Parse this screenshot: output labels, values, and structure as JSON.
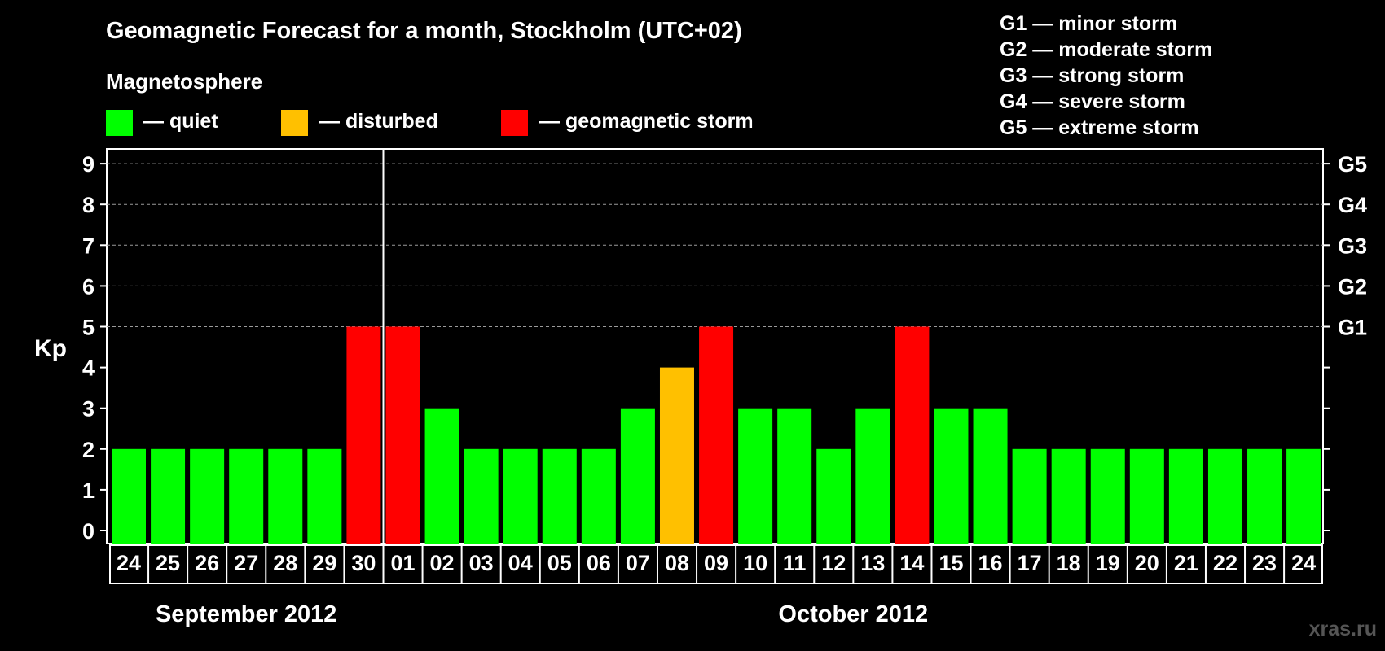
{
  "title": "Geomagnetic Forecast for a month, Stockholm (UTC+02)",
  "legend": {
    "heading": "Magnetosphere",
    "items": [
      {
        "label": "— quiet",
        "color": "#00ff00"
      },
      {
        "label": "— disturbed",
        "color": "#ffc000"
      },
      {
        "label": "— geomagnetic storm",
        "color": "#ff0000"
      }
    ]
  },
  "storm_scale": [
    "G1 — minor storm",
    "G2 — moderate storm",
    "G3 — strong storm",
    "G4 — severe storm",
    "G5 — extreme storm"
  ],
  "watermark": "xras.ru",
  "chart_data": {
    "type": "bar",
    "ylabel": "Kp",
    "ylim": [
      0,
      9
    ],
    "yticks": [
      0,
      1,
      2,
      3,
      4,
      5,
      6,
      7,
      8,
      9
    ],
    "right_ticks": [
      {
        "value": 5,
        "label": "G1"
      },
      {
        "value": 6,
        "label": "G2"
      },
      {
        "value": 7,
        "label": "G3"
      },
      {
        "value": 8,
        "label": "G4"
      },
      {
        "value": 9,
        "label": "G5"
      }
    ],
    "categories": [
      "24",
      "25",
      "26",
      "27",
      "28",
      "29",
      "30",
      "01",
      "02",
      "03",
      "04",
      "05",
      "06",
      "07",
      "08",
      "09",
      "10",
      "11",
      "12",
      "13",
      "14",
      "15",
      "16",
      "17",
      "18",
      "19",
      "20",
      "21",
      "22",
      "23",
      "24"
    ],
    "values": [
      2,
      2,
      2,
      2,
      2,
      2,
      5,
      5,
      3,
      2,
      2,
      2,
      2,
      3,
      4,
      5,
      3,
      3,
      2,
      3,
      5,
      3,
      3,
      2,
      2,
      2,
      2,
      2,
      2,
      2,
      2
    ],
    "colors": [
      "#00ff00",
      "#00ff00",
      "#00ff00",
      "#00ff00",
      "#00ff00",
      "#00ff00",
      "#ff0000",
      "#ff0000",
      "#00ff00",
      "#00ff00",
      "#00ff00",
      "#00ff00",
      "#00ff00",
      "#00ff00",
      "#ffc000",
      "#ff0000",
      "#00ff00",
      "#00ff00",
      "#00ff00",
      "#00ff00",
      "#ff0000",
      "#00ff00",
      "#00ff00",
      "#00ff00",
      "#00ff00",
      "#00ff00",
      "#00ff00",
      "#00ff00",
      "#00ff00",
      "#00ff00",
      "#00ff00"
    ],
    "months": [
      {
        "label": "September 2012",
        "from": 0,
        "to": 6
      },
      {
        "label": "October 2012",
        "from": 7,
        "to": 30
      }
    ],
    "grid": "dashed horizontal lines at integer Kp levels"
  }
}
